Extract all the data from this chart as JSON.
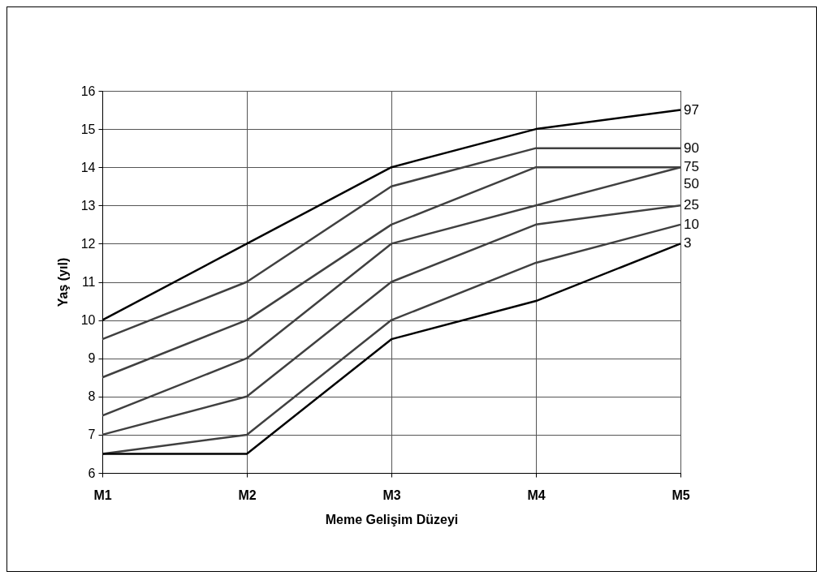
{
  "chart_data": {
    "type": "line",
    "xlabel": "Meme Gelişim Düzeyi",
    "ylabel": "Yaş (yıl)",
    "categories": [
      "M1",
      "M2",
      "M3",
      "M4",
      "M5"
    ],
    "series": [
      {
        "name": "97",
        "color": "#000000",
        "values": [
          10,
          12,
          14,
          15,
          15.5
        ]
      },
      {
        "name": "90",
        "color": "#404040",
        "values": [
          9.5,
          11,
          13.5,
          14.5,
          14.5
        ]
      },
      {
        "name": "75",
        "color": "#404040",
        "values": [
          8.5,
          10,
          12.5,
          14,
          14
        ]
      },
      {
        "name": "50",
        "color": "#404040",
        "values": [
          7.5,
          9,
          12,
          13,
          14
        ]
      },
      {
        "name": "25",
        "color": "#404040",
        "values": [
          7,
          8,
          11,
          12.5,
          13
        ]
      },
      {
        "name": "10",
        "color": "#404040",
        "values": [
          6.5,
          7,
          10,
          11.5,
          12.5
        ]
      },
      {
        "name": "3",
        "color": "#000000",
        "values": [
          6.5,
          6.5,
          9.5,
          10.5,
          12
        ]
      }
    ],
    "ylim": [
      6,
      16
    ],
    "yticks": [
      6,
      7,
      8,
      9,
      10,
      11,
      12,
      13,
      14,
      15,
      16
    ],
    "grid": true,
    "legend": false,
    "marker": "none",
    "line_style": "solid"
  }
}
